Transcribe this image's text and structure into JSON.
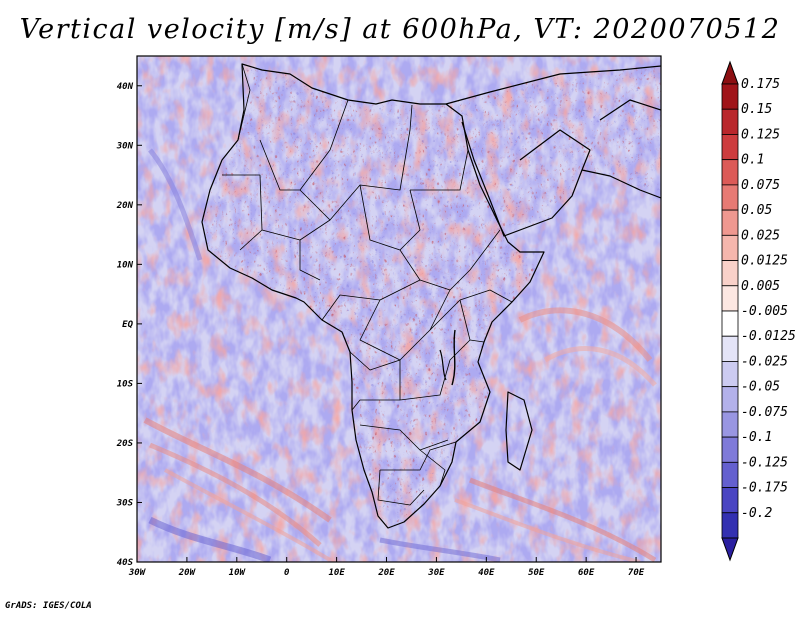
{
  "title": "Vertical velocity [m/s] at 600hPa, VT: 2020070512",
  "footer": "GrADS: IGES/COLA",
  "map": {
    "region": "Africa",
    "lon_range": [
      -30,
      75
    ],
    "lat_range": [
      -40,
      45
    ],
    "lat_ticks": [
      {
        "value": 40,
        "label": "40N"
      },
      {
        "value": 30,
        "label": "30N"
      },
      {
        "value": 20,
        "label": "20N"
      },
      {
        "value": 10,
        "label": "10N"
      },
      {
        "value": 0,
        "label": "EQ"
      },
      {
        "value": -10,
        "label": "10S"
      },
      {
        "value": -20,
        "label": "20S"
      },
      {
        "value": -30,
        "label": "30S"
      },
      {
        "value": -40,
        "label": "40S"
      }
    ],
    "lon_ticks": [
      {
        "value": -30,
        "label": "30W"
      },
      {
        "value": -20,
        "label": "20W"
      },
      {
        "value": -10,
        "label": "10W"
      },
      {
        "value": 0,
        "label": "0"
      },
      {
        "value": 10,
        "label": "10E"
      },
      {
        "value": 20,
        "label": "20E"
      },
      {
        "value": 30,
        "label": "30E"
      },
      {
        "value": 40,
        "label": "40E"
      },
      {
        "value": 50,
        "label": "50E"
      },
      {
        "value": 60,
        "label": "60E"
      },
      {
        "value": 70,
        "label": "70E"
      }
    ]
  },
  "colorbar": {
    "levels": [
      {
        "label": "0.175",
        "color": "#a01419"
      },
      {
        "label": "0.15",
        "color": "#b9272c"
      },
      {
        "label": "0.125",
        "color": "#cd3c3e"
      },
      {
        "label": "0.1",
        "color": "#dc5a57"
      },
      {
        "label": "0.075",
        "color": "#e77a74"
      },
      {
        "label": "0.05",
        "color": "#ef9890"
      },
      {
        "label": "0.025",
        "color": "#f5b6ad"
      },
      {
        "label": "0.0125",
        "color": "#f9d1c9"
      },
      {
        "label": "0.005",
        "color": "#fce7e2"
      },
      {
        "label": "-0.005",
        "color": "#ffffff"
      },
      {
        "label": "-0.0125",
        "color": "#e4e4f7"
      },
      {
        "label": "-0.025",
        "color": "#cccbf1"
      },
      {
        "label": "-0.05",
        "color": "#b3b1ea"
      },
      {
        "label": "-0.075",
        "color": "#9996e2"
      },
      {
        "label": "-0.1",
        "color": "#7f7ad9"
      },
      {
        "label": "-0.125",
        "color": "#6460cf"
      },
      {
        "label": "-0.175",
        "color": "#4a45c2"
      },
      {
        "label": "-0.2",
        "color": "#3330b1"
      }
    ],
    "top_color": "#8c0f12",
    "bottom_color": "#2a1fa0"
  }
}
